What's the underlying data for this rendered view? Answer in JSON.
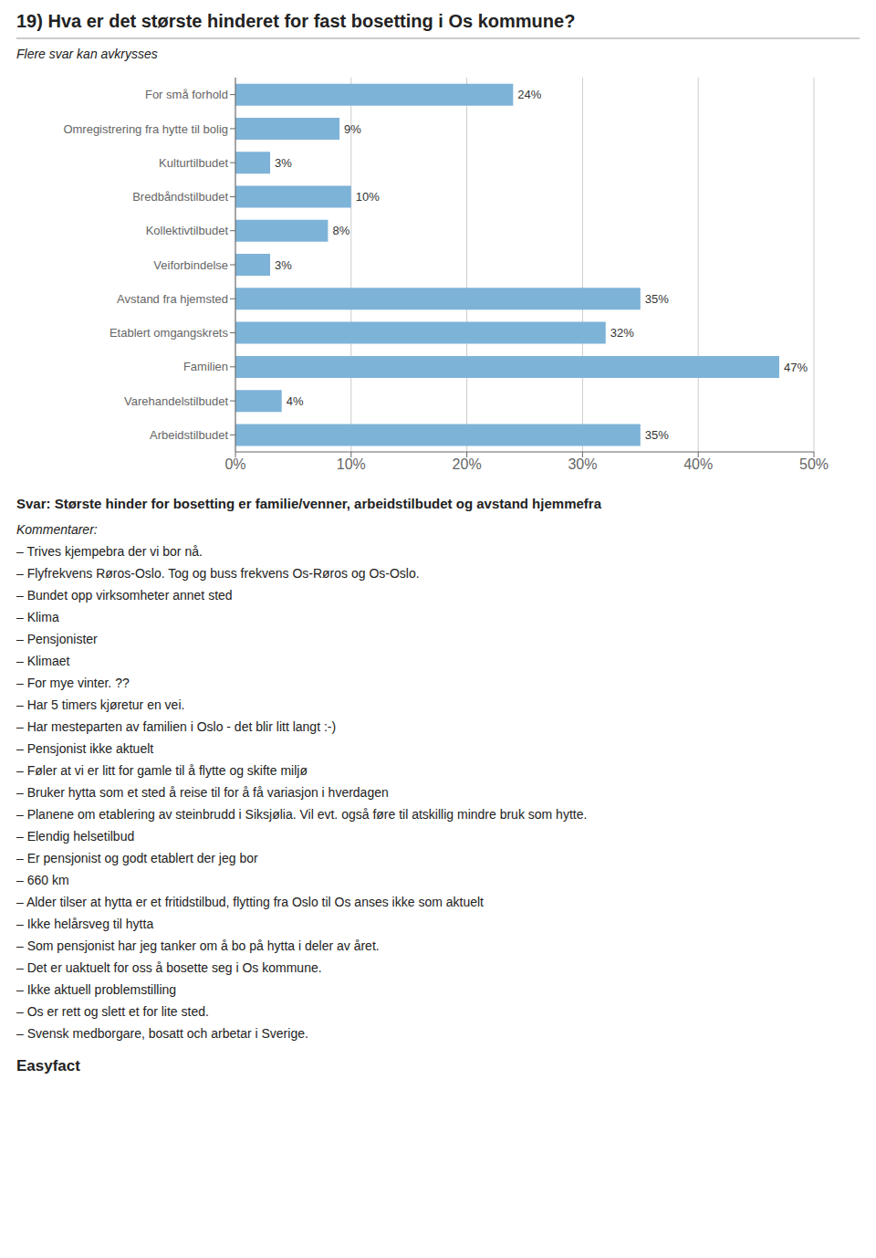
{
  "chart_data": {
    "type": "bar",
    "orientation": "horizontal",
    "title": "19) Hva er det største hinderet for fast bosetting i Os kommune?",
    "subtitle": "Flere svar kan avkrysses",
    "categories": [
      "For små forhold",
      "Omregistrering fra hytte til bolig",
      "Kulturtilbudet",
      "Bredbåndstilbudet",
      "Kollektivtilbudet",
      "Veiforbindelse",
      "Avstand fra hjemsted",
      "Etablert omgangskrets",
      "Familien",
      "Varehandelstilbudet",
      "Arbeidstilbudet"
    ],
    "values": [
      24,
      9,
      3,
      10,
      8,
      3,
      35,
      32,
      47,
      4,
      35
    ],
    "value_labels": [
      "24%",
      "9%",
      "3%",
      "10%",
      "8%",
      "3%",
      "35%",
      "32%",
      "47%",
      "4%",
      "35%"
    ],
    "data_labels": true,
    "color": "#7EB3D8",
    "xlim": [
      0,
      50
    ],
    "xticks": [
      {
        "value": 0,
        "label": "0%"
      },
      {
        "value": 10,
        "label": "10%"
      },
      {
        "value": 20,
        "label": "20%"
      },
      {
        "value": 30,
        "label": "30%"
      },
      {
        "value": 40,
        "label": "40%"
      },
      {
        "value": 50,
        "label": "50%"
      }
    ],
    "grid": true,
    "annotations": [
      "Svar: Største hinder for bosetting er familie/venner, arbeidstilbudet og avstand hjemmefra",
      "Kommentarer:",
      "– Trives kjempebra der vi bor nå.",
      "– Flyfrekvens Røros-Oslo. Tog og buss frekvens Os-Røros og Os-Oslo.",
      "– Bundet opp virksomheter annet sted",
      "– Klima",
      "– Pensjonister",
      "– Klimaet",
      "– For mye vinter. ??",
      "– Har 5 timers kjøretur en vei.",
      "– Har mesteparten av familien i Oslo - det blir litt langt :-)",
      "– Pensjonist ikke aktuelt",
      "– Føler at vi er litt for gamle til å flytte og skifte miljø",
      "– Bruker hytta som et sted å reise til for å få variasjon i hverdagen",
      "– Planene om etablering av steinbrudd i Siksjølia. Vil evt. også føre til atskillig mindre bruk som hytte.",
      "– Elendig helsetilbud",
      "– Er pensjonist og godt etablert der jeg bor",
      "– 660 km",
      "– Alder tilser at hytta er et fritidstilbud, flytting fra Oslo til Os anses ikke som aktuelt",
      "– Ikke helårsveg til hytta",
      "– Som pensjonist har jeg tanker om å bo på hytta i deler av året.",
      "– Det er uaktuelt for oss å bosette seg i Os kommune.",
      "– Ikke aktuell problemstilling",
      "– Os er rett og slett et for lite sted.",
      "– Svensk medborgare, bosatt och arbetar i Sverige.",
      "Easyfact"
    ]
  }
}
